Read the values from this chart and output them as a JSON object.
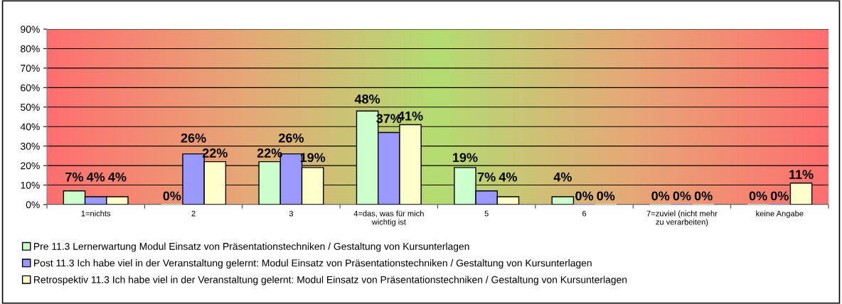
{
  "chart_data": {
    "type": "bar",
    "categories": [
      "1=nichts",
      "2",
      "3",
      "4=das, was für mich\nwichtig ist",
      "5",
      "6",
      "7=zuviel (nicht mehr\nzu verarbeiten)",
      "keine Angabe"
    ],
    "series": [
      {
        "name": "Pre 11.3 Lernerwartung Modul Einsatz von Präsentationstechniken / Gestaltung von Kursunterlagen",
        "color": "#ccffcc",
        "values": [
          7,
          0,
          22,
          48,
          19,
          4,
          0,
          0
        ],
        "value_labels": [
          "7%",
          "0%",
          "22%",
          "48%",
          "19%",
          "4%",
          "0%",
          "0%"
        ]
      },
      {
        "name": "Post 11.3 Ich habe viel in der Veranstaltung gelernt: Modul Einsatz von Präsentationstechniken / Gestaltung von Kursunterlagen",
        "color": "#9999ff",
        "values": [
          4,
          26,
          26,
          37,
          7,
          0,
          0,
          0
        ],
        "value_labels": [
          "4%",
          "26%",
          "26%",
          "37%",
          "7%",
          "0%",
          "0%",
          "0%"
        ]
      },
      {
        "name": "Retrospektiv 11.3 Ich habe viel in der Veranstaltung gelernt: Modul Einsatz von Präsentationstechniken / Gestaltung von Kursunterlagen",
        "color": "#ffffcc",
        "values": [
          4,
          22,
          19,
          41,
          4,
          0,
          0,
          11
        ],
        "value_labels": [
          "4%",
          "22%",
          "19%",
          "41%",
          "4%",
          "0%",
          "0%",
          "11%"
        ]
      }
    ],
    "ylim": [
      0,
      90
    ],
    "yticks": [
      {
        "value": 0,
        "label": "0%"
      },
      {
        "value": 10,
        "label": "10%"
      },
      {
        "value": 20,
        "label": "20%"
      },
      {
        "value": 30,
        "label": "30%"
      },
      {
        "value": 40,
        "label": "40%"
      },
      {
        "value": 50,
        "label": "50%"
      },
      {
        "value": 60,
        "label": "60%"
      },
      {
        "value": 70,
        "label": "70%"
      },
      {
        "value": 80,
        "label": "80%"
      },
      {
        "value": 90,
        "label": "90%"
      }
    ],
    "grid": "y",
    "legend": "bottom"
  }
}
